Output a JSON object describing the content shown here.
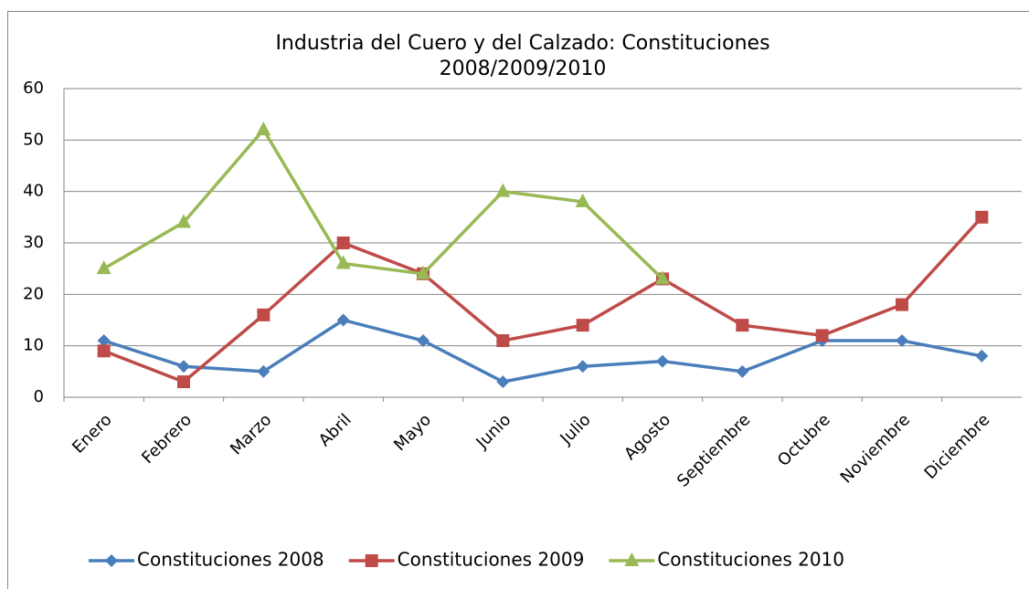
{
  "chart_data": {
    "type": "line",
    "title": "Industria del Cuero y del Calzado: Constituciones 2008/2009/2010",
    "categories": [
      "Enero",
      "Febrero",
      "Marzo",
      "Abril",
      "Mayo",
      "Junio",
      "Julio",
      "Agosto",
      "Septiembre",
      "Octubre",
      "Noviembre",
      "Diciembre"
    ],
    "series": [
      {
        "name": "Constituciones 2008",
        "color": "#4a7ebb",
        "marker": "diamond",
        "values": [
          11,
          6,
          5,
          15,
          11,
          3,
          6,
          7,
          5,
          11,
          11,
          8
        ]
      },
      {
        "name": "Constituciones 2009",
        "color": "#be4b48",
        "marker": "square",
        "values": [
          9,
          3,
          16,
          30,
          24,
          11,
          14,
          23,
          14,
          12,
          18,
          35
        ]
      },
      {
        "name": "Constituciones 2010",
        "color": "#98b954",
        "marker": "triangle",
        "values": [
          25,
          34,
          52,
          26,
          24,
          40,
          38,
          23,
          null,
          null,
          null,
          null
        ]
      }
    ],
    "ylim": [
      0,
      60
    ],
    "yticks": [
      0,
      10,
      20,
      30,
      40,
      50,
      60
    ],
    "grid": true,
    "legend": "bottom"
  }
}
